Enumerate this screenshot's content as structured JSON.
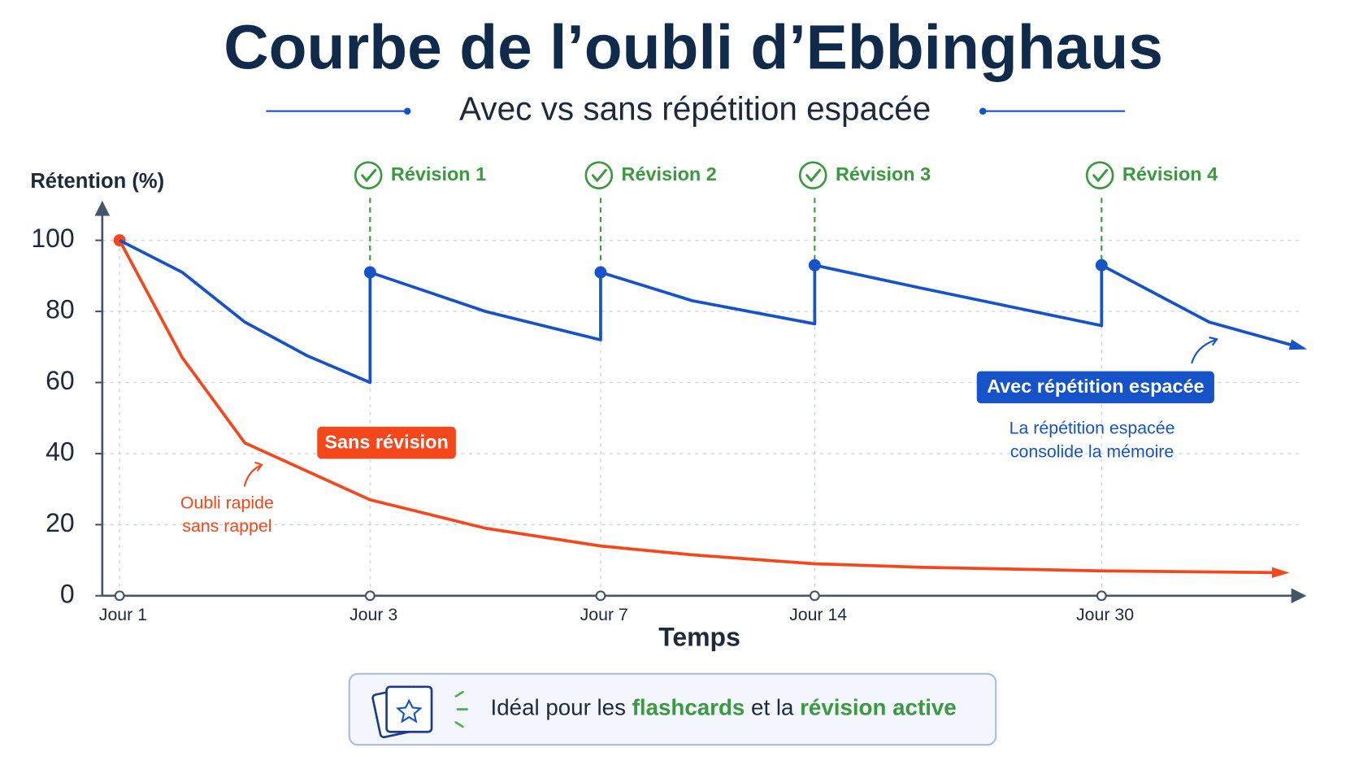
{
  "chart_data": {
    "type": "line",
    "title": "Courbe de l’oubli d’Ebbinghaus",
    "subtitle": "Avec vs sans répétition espacée",
    "y_label": "Rétention (%)",
    "x_label": "Temps",
    "xlim": [
      1,
      41
    ],
    "xticks": [
      {
        "value": 1,
        "label": "Jour 1"
      },
      {
        "value": 3,
        "label": "Jour 3"
      },
      {
        "value": 7,
        "label": "Jour 7"
      },
      {
        "value": 14,
        "label": "Jour 14"
      },
      {
        "value": 30,
        "label": "Jour 30"
      }
    ],
    "ylim": [
      0,
      100
    ],
    "yticks": [
      0,
      20,
      40,
      60,
      80,
      100
    ],
    "grid": true,
    "series": [
      {
        "name": "Sans révision",
        "color": "#f4471b",
        "x": [
          1,
          1.5,
          2,
          3,
          5,
          7,
          10,
          14,
          20,
          30,
          40
        ],
        "values": [
          100,
          67,
          43,
          27,
          19,
          14,
          11.5,
          9,
          8,
          7,
          6.5
        ]
      },
      {
        "name": "Avec répétition espacée",
        "color": "#1652c8",
        "x": [
          1,
          1.5,
          2,
          2.5,
          3,
          3,
          5,
          7,
          7,
          10,
          14,
          14,
          20,
          30,
          30,
          36,
          41
        ],
        "values": [
          100,
          91,
          77,
          67.5,
          60,
          91,
          80,
          72,
          91,
          83,
          76.5,
          93,
          86.5,
          76,
          93,
          77,
          70
        ]
      }
    ],
    "annotations": [
      {
        "text": "Révision 1",
        "x": 3
      },
      {
        "text": "Révision 2",
        "x": 7
      },
      {
        "text": "Révision 3",
        "x": 14
      },
      {
        "text": "Révision 4",
        "x": 30
      }
    ],
    "notes": [
      {
        "lines": [
          "Oubli rapide",
          "sans rappel"
        ]
      },
      {
        "lines": [
          "La répétition espacée",
          "consolide la mémoire"
        ]
      }
    ]
  },
  "footer": {
    "parts": [
      "Idéal pour les ",
      "flashcards",
      " et la ",
      "révision active"
    ]
  }
}
